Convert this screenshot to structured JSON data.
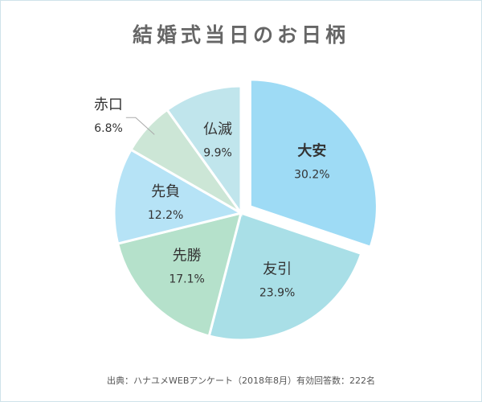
{
  "chart_data": {
    "type": "pie",
    "title": "結婚式当日のお日柄",
    "categories": [
      "大安",
      "友引",
      "先勝",
      "先負",
      "赤口",
      "仏滅"
    ],
    "values": [
      30.2,
      23.9,
      17.1,
      12.2,
      6.8,
      9.9
    ],
    "value_labels": [
      "30.2%",
      "23.9%",
      "17.1%",
      "12.2%",
      "6.8%",
      "9.9%"
    ],
    "colors": [
      "#9edbf5",
      "#a9dfe7",
      "#b5e1cb",
      "#b6e3f6",
      "#cce6d6",
      "#c0e5ec"
    ],
    "source": "出典：ハナユメWEBアンケート（2018年8月）有効回答数：222名"
  }
}
